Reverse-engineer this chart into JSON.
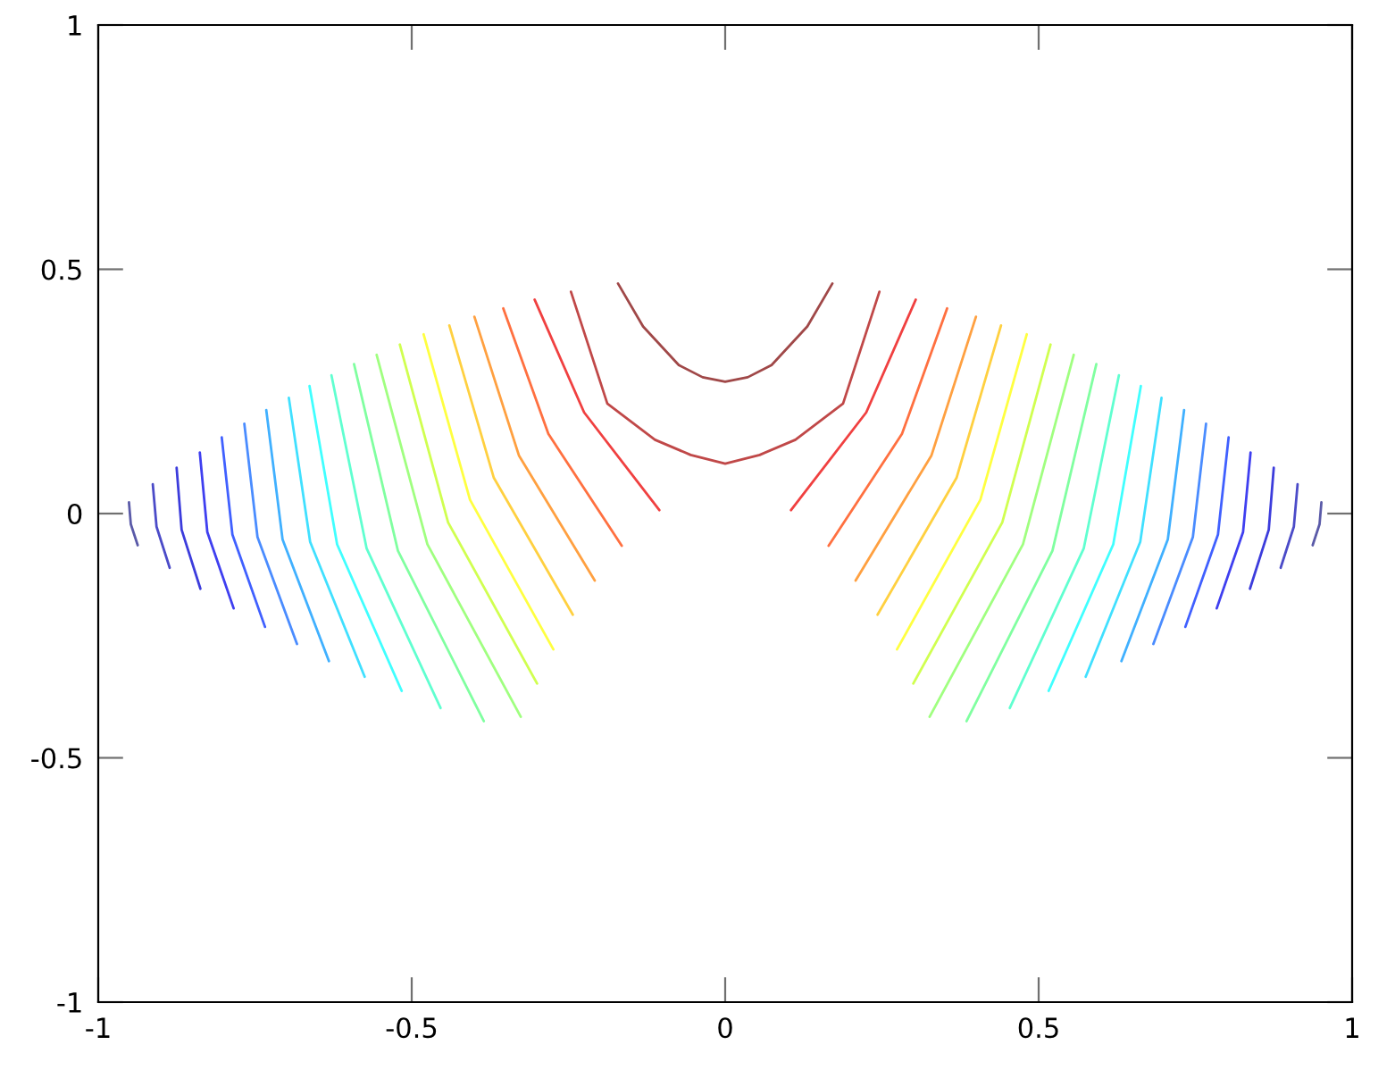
{
  "chart_data": {
    "type": "line",
    "xlim": [
      -1,
      1
    ],
    "ylim": [
      -1,
      1
    ],
    "xticks": [
      -1,
      -0.5,
      0,
      0.5,
      1
    ],
    "yticks": [
      -1,
      -0.5,
      0,
      0.5,
      1
    ],
    "marker": "none",
    "line_style": "solid",
    "series": [
      {
        "color": "#5a5aa8",
        "x": [
          -0.951,
          -0.948,
          -0.937
        ],
        "values": [
          0.023,
          -0.022,
          -0.065
        ]
      },
      {
        "color": "#4b4bc8",
        "x": [
          -0.913,
          -0.907,
          -0.886
        ],
        "values": [
          0.06,
          -0.027,
          -0.111
        ]
      },
      {
        "color": "#3c3cdc",
        "x": [
          -0.875,
          -0.867,
          -0.837
        ],
        "values": [
          0.094,
          -0.033,
          -0.154
        ]
      },
      {
        "color": "#3f3ff0",
        "x": [
          -0.838,
          -0.826,
          -0.784
        ],
        "values": [
          0.125,
          -0.038,
          -0.194
        ]
      },
      {
        "color": "#4060ff",
        "x": [
          -0.803,
          -0.786,
          -0.734
        ],
        "values": [
          0.156,
          -0.043,
          -0.232
        ]
      },
      {
        "color": "#4a8cff",
        "x": [
          -0.767,
          -0.746,
          -0.683
        ],
        "values": [
          0.184,
          -0.048,
          -0.267
        ]
      },
      {
        "color": "#40b0ff",
        "x": [
          -0.732,
          -0.706,
          -0.632
        ],
        "values": [
          0.212,
          -0.053,
          -0.302
        ]
      },
      {
        "color": "#40e0ff",
        "x": [
          -0.696,
          -0.662,
          -0.575
        ],
        "values": [
          0.237,
          -0.058,
          -0.334
        ]
      },
      {
        "color": "#40ffff",
        "x": [
          -0.663,
          -0.619,
          -0.516
        ],
        "values": [
          0.261,
          -0.063,
          -0.363
        ]
      },
      {
        "color": "#60ffd0",
        "x": [
          -0.628,
          -0.572,
          -0.454
        ],
        "values": [
          0.283,
          -0.071,
          -0.398
        ]
      },
      {
        "color": "#80ffa0",
        "x": [
          -0.592,
          -0.522,
          -0.385
        ],
        "values": [
          0.306,
          -0.076,
          -0.425
        ]
      },
      {
        "color": "#a0ff80",
        "x": [
          -0.556,
          -0.475,
          -0.326
        ],
        "values": [
          0.325,
          -0.063,
          -0.416
        ]
      },
      {
        "color": "#d0ff50",
        "x": [
          -0.519,
          -0.442,
          -0.3
        ],
        "values": [
          0.346,
          -0.018,
          -0.348
        ]
      },
      {
        "color": "#ffff40",
        "x": [
          -0.481,
          -0.407,
          -0.274
        ],
        "values": [
          0.367,
          0.028,
          -0.278
        ]
      },
      {
        "color": "#ffd040",
        "x": [
          -0.44,
          -0.369,
          -0.243
        ],
        "values": [
          0.385,
          0.073,
          -0.207
        ]
      },
      {
        "color": "#ffa040",
        "x": [
          -0.4,
          -0.329,
          -0.208
        ],
        "values": [
          0.403,
          0.119,
          -0.137
        ]
      },
      {
        "color": "#ff7040",
        "x": [
          -0.354,
          -0.282,
          -0.165
        ],
        "values": [
          0.42,
          0.163,
          -0.066
        ]
      },
      {
        "color": "#f04040",
        "x": [
          -0.304,
          -0.225,
          -0.105
        ],
        "values": [
          0.438,
          0.207,
          0.007
        ]
      },
      {
        "color": "#c04848",
        "x": [
          -0.246,
          -0.188,
          -0.112,
          -0.055,
          0,
          0.055,
          0.112,
          0.188,
          0.246
        ],
        "values": [
          0.454,
          0.225,
          0.151,
          0.12,
          0.102,
          0.12,
          0.151,
          0.225,
          0.454
        ]
      },
      {
        "color": "#a04848",
        "x": [
          -0.171,
          -0.131,
          -0.074,
          -0.036,
          0,
          0.036,
          0.074,
          0.131,
          0.171
        ],
        "values": [
          0.471,
          0.383,
          0.304,
          0.279,
          0.27,
          0.279,
          0.304,
          0.383,
          0.471
        ]
      },
      {
        "color": "#f04040",
        "x": [
          0.304,
          0.225,
          0.105
        ],
        "values": [
          0.438,
          0.207,
          0.007
        ]
      },
      {
        "color": "#ff7040",
        "x": [
          0.354,
          0.282,
          0.165
        ],
        "values": [
          0.42,
          0.163,
          -0.066
        ]
      },
      {
        "color": "#ffa040",
        "x": [
          0.4,
          0.329,
          0.208
        ],
        "values": [
          0.403,
          0.119,
          -0.137
        ]
      },
      {
        "color": "#ffd040",
        "x": [
          0.44,
          0.369,
          0.243
        ],
        "values": [
          0.385,
          0.073,
          -0.207
        ]
      },
      {
        "color": "#ffff40",
        "x": [
          0.481,
          0.407,
          0.274
        ],
        "values": [
          0.367,
          0.028,
          -0.278
        ]
      },
      {
        "color": "#d0ff50",
        "x": [
          0.519,
          0.442,
          0.3
        ],
        "values": [
          0.346,
          -0.018,
          -0.348
        ]
      },
      {
        "color": "#a0ff80",
        "x": [
          0.556,
          0.475,
          0.326
        ],
        "values": [
          0.325,
          -0.063,
          -0.416
        ]
      },
      {
        "color": "#80ffa0",
        "x": [
          0.592,
          0.522,
          0.385
        ],
        "values": [
          0.306,
          -0.076,
          -0.425
        ]
      },
      {
        "color": "#60ffd0",
        "x": [
          0.628,
          0.572,
          0.454
        ],
        "values": [
          0.283,
          -0.071,
          -0.398
        ]
      },
      {
        "color": "#40ffff",
        "x": [
          0.663,
          0.619,
          0.516
        ],
        "values": [
          0.261,
          -0.063,
          -0.363
        ]
      },
      {
        "color": "#40e0ff",
        "x": [
          0.696,
          0.662,
          0.575
        ],
        "values": [
          0.237,
          -0.058,
          -0.334
        ]
      },
      {
        "color": "#40b0ff",
        "x": [
          0.732,
          0.706,
          0.632
        ],
        "values": [
          0.212,
          -0.053,
          -0.302
        ]
      },
      {
        "color": "#4a8cff",
        "x": [
          0.767,
          0.746,
          0.683
        ],
        "values": [
          0.184,
          -0.048,
          -0.267
        ]
      },
      {
        "color": "#4060ff",
        "x": [
          0.803,
          0.786,
          0.734
        ],
        "values": [
          0.156,
          -0.043,
          -0.232
        ]
      },
      {
        "color": "#3f3ff0",
        "x": [
          0.838,
          0.826,
          0.784
        ],
        "values": [
          0.125,
          -0.038,
          -0.194
        ]
      },
      {
        "color": "#3c3cdc",
        "x": [
          0.875,
          0.867,
          0.837
        ],
        "values": [
          0.094,
          -0.033,
          -0.154
        ]
      },
      {
        "color": "#4b4bc8",
        "x": [
          0.913,
          0.907,
          0.886
        ],
        "values": [
          0.06,
          -0.027,
          -0.111
        ]
      },
      {
        "color": "#5a5aa8",
        "x": [
          0.951,
          0.948,
          0.937
        ],
        "values": [
          0.023,
          -0.022,
          -0.065
        ]
      }
    ]
  }
}
